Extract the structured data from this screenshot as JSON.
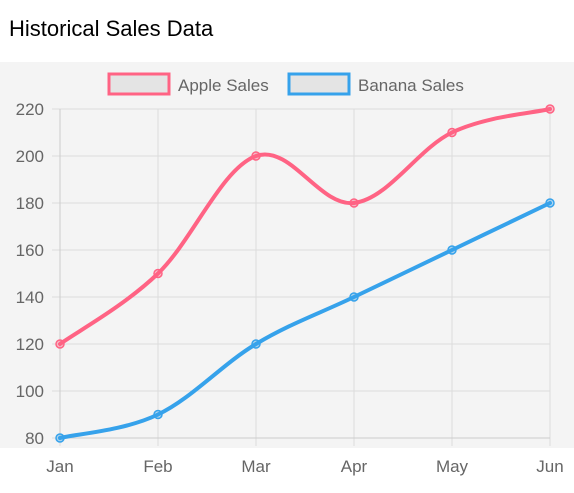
{
  "page": {
    "title": "Historical Sales Data"
  },
  "chart_data": {
    "type": "line",
    "title": "Historical Sales Data",
    "categories": [
      "Jan",
      "Feb",
      "Mar",
      "Apr",
      "May",
      "Jun"
    ],
    "series": [
      {
        "name": "Apple Sales",
        "values": [
          120,
          150,
          200,
          180,
          210,
          220
        ],
        "color": "#ff6384"
      },
      {
        "name": "Banana Sales",
        "values": [
          80,
          90,
          120,
          140,
          160,
          180
        ],
        "color": "#36a2eb"
      }
    ],
    "ylim": [
      80,
      220
    ],
    "yticks": [
      "80",
      "100",
      "120",
      "140",
      "160",
      "180",
      "200",
      "220"
    ],
    "grid": true,
    "legend_position": "top",
    "smooth": true
  }
}
